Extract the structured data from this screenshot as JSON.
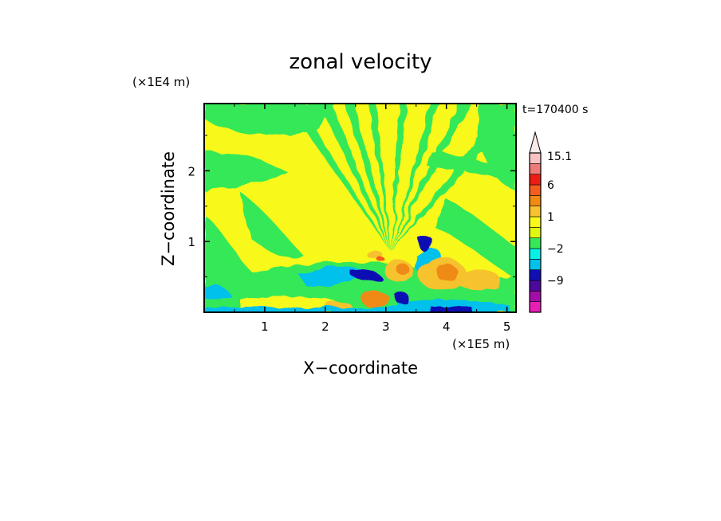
{
  "chart_data": {
    "type": "heatmap",
    "title": "zonal velocity",
    "xlabel": "X−coordinate",
    "ylabel": "Z−coordinate",
    "x_unit": "(×1E5 m)",
    "y_unit": "(×1E4 m)",
    "time_label": "t=170400 s",
    "xlim": [
      0,
      5.15
    ],
    "ylim": [
      0,
      2.95
    ],
    "x_ticks": [
      "1",
      "2",
      "3",
      "4",
      "5"
    ],
    "y_ticks": [
      "1",
      "2"
    ],
    "x_tick_values": [
      1,
      2,
      3,
      4,
      5
    ],
    "y_tick_values": [
      1,
      2
    ],
    "colorbar": {
      "levels": [
        -16,
        -12,
        -9,
        -6,
        -4,
        -2,
        -1,
        0,
        1,
        2,
        4,
        6,
        9,
        12,
        15.1
      ],
      "labels": [
        "15.1",
        "6",
        "1",
        "−2",
        "−9"
      ],
      "label_values": [
        15.1,
        6,
        1,
        -2,
        -9
      ],
      "colors": [
        "#e81fb5",
        "#a30ea8",
        "#4c0a9c",
        "#1010b4",
        "#06c0ec",
        "#07f2e6",
        "#36e858",
        "#dff80d",
        "#f8f81a",
        "#f6c22e",
        "#f08a12",
        "#f45d1e",
        "#ea1e14",
        "#ee7a7a",
        "#f8c2c2"
      ],
      "extend": "max"
    },
    "field": {
      "background_class": "0 to 1",
      "regions": [
        {
          "class": "-1 to 0",
          "shape": "band",
          "z_range": [
            2.2,
            2.8
          ],
          "note_x_range": [
            0,
            1.5
          ]
        },
        {
          "class": "-1 to 0",
          "shape": "rays",
          "origin_x": 3.0,
          "origin_z": 0.8
        },
        {
          "class": "-2 to -1",
          "shape": "blob",
          "x": 1.9,
          "z": 0.5
        },
        {
          "class": "-4 to -2",
          "shape": "blob",
          "x": 2.5,
          "z": 0.55
        },
        {
          "class": "-6 to -4",
          "shape": "blob",
          "x": 2.55,
          "z": 0.55
        },
        {
          "class": "-6 to -4",
          "shape": "blob",
          "x": 3.55,
          "z": 1.0
        },
        {
          "class": "-6 to -4",
          "shape": "blob",
          "x": 3.25,
          "z": 0.25
        },
        {
          "class": "2 to 4",
          "shape": "blob",
          "x": 3.7,
          "z": 0.6
        },
        {
          "class": "4 to 6",
          "shape": "blob",
          "x": 3.75,
          "z": 0.55
        },
        {
          "class": "2 to 4",
          "shape": "blob",
          "x": 4.45,
          "z": 0.45
        },
        {
          "class": "2 to 4",
          "shape": "blob",
          "x": 2.85,
          "z": 0.25
        },
        {
          "class": "4 to 6",
          "shape": "blob",
          "x": 3.2,
          "z": 0.6
        }
      ]
    }
  }
}
